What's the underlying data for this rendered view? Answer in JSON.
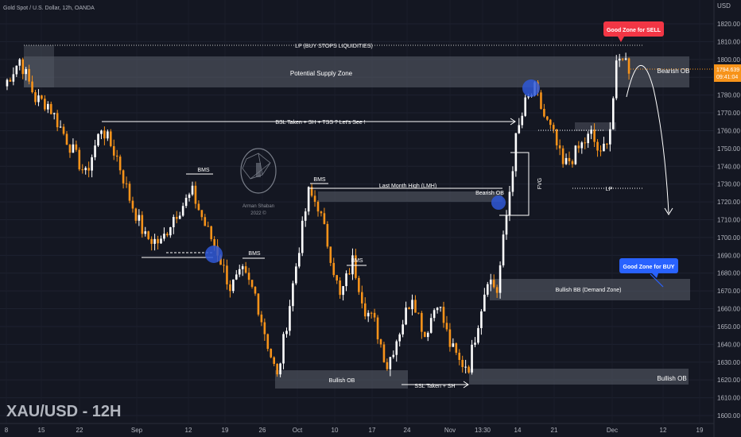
{
  "header": {
    "symbol_line": "Gold Spot / U.S. Dollar, 12h, OANDA",
    "watermark": "XAU/USD - 12H",
    "currency": "USD"
  },
  "price_tag": {
    "value": "1794.639",
    "countdown": "09:41:04"
  },
  "logo_text": {
    "line1": "Arman Shaban",
    "line2": "2022 ©"
  },
  "labels": {
    "lp_top": "LP (BUY STOPS LIQUIDITIES)",
    "supply_zone": "Potential Supply Zone",
    "bearish_ob_right": "Bearish OB",
    "bsl_taken": "BSL Taken + SH + TSS ? Let's See !",
    "bms_1": "BMS",
    "bms_2": "BMS",
    "bms_3": "BMS",
    "bms_4": "BMS",
    "last_month_high": "Last Month High (LMH)",
    "bearish_ob_mid": "Bearish OB",
    "fvg": "FVG",
    "lp_right": "LP",
    "bullish_bb": "Bullish BB (Demand Zone)",
    "bullish_ob_left": "Bullish OB",
    "ssl_taken": "SSL Taken + SH",
    "bullish_ob_right": "Bullish OB",
    "good_sell": "Good Zone for SELL",
    "good_buy": "Good Zone for BUY"
  },
  "colors": {
    "background": "#141722",
    "bull_candle": "#ffffff",
    "bear_candle": "#f7931a",
    "zone": "#555a66",
    "sell_badge": "#f23645",
    "buy_badge": "#2962ff",
    "price_tag": "#f7931a",
    "circle": "#2f58d6"
  },
  "chart_data": {
    "type": "candlestick",
    "title": "Gold Spot / U.S. Dollar, 12h, OANDA",
    "ylabel": "USD",
    "ylim": [
      1595,
      1830
    ],
    "y_ticks": [
      1600,
      1610,
      1620,
      1630,
      1640,
      1650,
      1660,
      1670,
      1680,
      1690,
      1700,
      1710,
      1720,
      1730,
      1740,
      1750,
      1760,
      1770,
      1780,
      1790,
      1800,
      1810,
      1820
    ],
    "x_ticks": [
      "8",
      "15",
      "22",
      "Sep",
      "12",
      "19",
      "26",
      "Oct",
      "10",
      "17",
      "24",
      "Nov",
      "13:30",
      "14",
      "21",
      "Dec",
      "12",
      "19"
    ],
    "current_price": 1794.639,
    "close_path": [
      {
        "i": 0,
        "p": 1785
      },
      {
        "i": 5,
        "p": 1800
      },
      {
        "i": 10,
        "p": 1778
      },
      {
        "i": 14,
        "p": 1775
      },
      {
        "i": 20,
        "p": 1755
      },
      {
        "i": 26,
        "p": 1735
      },
      {
        "i": 31,
        "p": 1762
      },
      {
        "i": 36,
        "p": 1745
      },
      {
        "i": 40,
        "p": 1722
      },
      {
        "i": 45,
        "p": 1700
      },
      {
        "i": 50,
        "p": 1697
      },
      {
        "i": 54,
        "p": 1712
      },
      {
        "i": 60,
        "p": 1725
      },
      {
        "i": 64,
        "p": 1707
      },
      {
        "i": 68,
        "p": 1692
      },
      {
        "i": 72,
        "p": 1672
      },
      {
        "i": 76,
        "p": 1680
      },
      {
        "i": 80,
        "p": 1668
      },
      {
        "i": 84,
        "p": 1640
      },
      {
        "i": 87,
        "p": 1621
      },
      {
        "i": 90,
        "p": 1652
      },
      {
        "i": 94,
        "p": 1695
      },
      {
        "i": 97,
        "p": 1725
      },
      {
        "i": 100,
        "p": 1718
      },
      {
        "i": 104,
        "p": 1690
      },
      {
        "i": 107,
        "p": 1666
      },
      {
        "i": 111,
        "p": 1687
      },
      {
        "i": 115,
        "p": 1660
      },
      {
        "i": 118,
        "p": 1652
      },
      {
        "i": 122,
        "p": 1628
      },
      {
        "i": 126,
        "p": 1648
      },
      {
        "i": 130,
        "p": 1668
      },
      {
        "i": 134,
        "p": 1645
      },
      {
        "i": 138,
        "p": 1665
      },
      {
        "i": 142,
        "p": 1640
      },
      {
        "i": 145,
        "p": 1630
      },
      {
        "i": 148,
        "p": 1628
      },
      {
        "i": 151,
        "p": 1653
      },
      {
        "i": 154,
        "p": 1678
      },
      {
        "i": 157,
        "p": 1670
      },
      {
        "i": 160,
        "p": 1712
      },
      {
        "i": 163,
        "p": 1755
      },
      {
        "i": 166,
        "p": 1775
      },
      {
        "i": 169,
        "p": 1783
      },
      {
        "i": 172,
        "p": 1768
      },
      {
        "i": 175,
        "p": 1757
      },
      {
        "i": 178,
        "p": 1740
      },
      {
        "i": 181,
        "p": 1745
      },
      {
        "i": 184,
        "p": 1752
      },
      {
        "i": 187,
        "p": 1758
      },
      {
        "i": 190,
        "p": 1745
      },
      {
        "i": 193,
        "p": 1762
      },
      {
        "i": 195,
        "p": 1795
      },
      {
        "i": 197,
        "p": 1803
      },
      {
        "i": 199,
        "p": 1795
      }
    ]
  }
}
